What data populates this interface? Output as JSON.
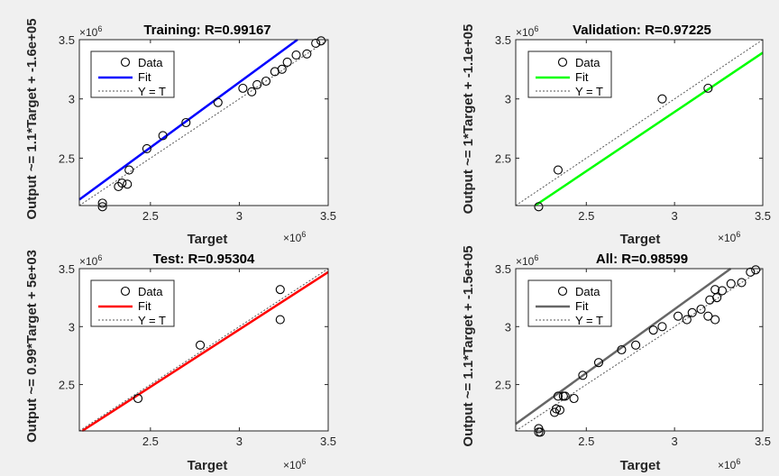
{
  "colors": {
    "figure_background": "#f0f0f0",
    "axes_background": "#ffffff",
    "training_fit": "#0000ff",
    "validation_fit": "#00ff00",
    "test_fit": "#ff0000",
    "all_fit": "#666666",
    "marker": "#000000",
    "identity_line": "#555555"
  },
  "chart_data": [
    {
      "type": "scatter",
      "title": "Training: R=0.99167",
      "xlabel": "Target",
      "ylabel": "Output ~= 1.1*Target + -1.6e+05",
      "x_exponent": "×10",
      "x_exponent_power": "6",
      "y_exponent": "×10",
      "y_exponent_power": "6",
      "xlim": [
        2.1,
        3.5
      ],
      "ylim": [
        2.1,
        3.5
      ],
      "xticks": [
        2.5,
        3,
        3.5
      ],
      "yticks": [
        2.5,
        3,
        3.5
      ],
      "xtick_labels": [
        "2.5",
        "3",
        "3.5"
      ],
      "ytick_labels": [
        "2.5",
        "3",
        "3.5"
      ],
      "fit": {
        "slope": 1.1,
        "intercept": -0.16
      },
      "fit_color": "#0000ff",
      "legend": {
        "data": "Data",
        "fit": "Fit",
        "identity": "Y = T",
        "position": "top-left"
      },
      "x": [
        2.23,
        2.23,
        2.32,
        2.34,
        2.37,
        2.38,
        2.48,
        2.57,
        2.7,
        2.88,
        3.02,
        3.07,
        3.1,
        3.15,
        3.2,
        3.24,
        3.27,
        3.32,
        3.38,
        3.43,
        3.46
      ],
      "y": [
        2.12,
        2.09,
        2.26,
        2.29,
        2.28,
        2.4,
        2.58,
        2.69,
        2.8,
        2.97,
        3.09,
        3.06,
        3.12,
        3.15,
        3.23,
        3.25,
        3.31,
        3.37,
        3.38,
        3.47,
        3.49
      ]
    },
    {
      "type": "scatter",
      "title": "Validation: R=0.97225",
      "xlabel": "Target",
      "ylabel": "Output ~= 1*Target + -1.1e+05",
      "x_exponent": "×10",
      "x_exponent_power": "6",
      "y_exponent": "×10",
      "y_exponent_power": "6",
      "xlim": [
        2.1,
        3.5
      ],
      "ylim": [
        2.1,
        3.5
      ],
      "xticks": [
        2.5,
        3,
        3.5
      ],
      "yticks": [
        2.5,
        3,
        3.5
      ],
      "xtick_labels": [
        "2.5",
        "3",
        "3.5"
      ],
      "ytick_labels": [
        "2.5",
        "3",
        "3.5"
      ],
      "fit": {
        "slope": 1.0,
        "intercept": -0.11
      },
      "fit_color": "#00ff00",
      "legend": {
        "data": "Data",
        "fit": "Fit",
        "identity": "Y = T",
        "position": "top-left"
      },
      "x": [
        2.23,
        2.34,
        2.93,
        3.19
      ],
      "y": [
        2.09,
        2.4,
        3.0,
        3.09
      ]
    },
    {
      "type": "scatter",
      "title": "Test: R=0.95304",
      "xlabel": "Target",
      "ylabel": "Output ~= 0.99*Target + 5e+03",
      "x_exponent": "×10",
      "x_exponent_power": "6",
      "y_exponent": "×10",
      "y_exponent_power": "6",
      "xlim": [
        2.1,
        3.5
      ],
      "ylim": [
        2.1,
        3.5
      ],
      "xticks": [
        2.5,
        3,
        3.5
      ],
      "yticks": [
        2.5,
        3,
        3.5
      ],
      "xtick_labels": [
        "2.5",
        "3",
        "3.5"
      ],
      "ytick_labels": [
        "2.5",
        "3",
        "3.5"
      ],
      "fit": {
        "slope": 0.99,
        "intercept": 0.005
      },
      "fit_color": "#ff0000",
      "legend": {
        "data": "Data",
        "fit": "Fit",
        "identity": "Y = T",
        "position": "top-left"
      },
      "x": [
        2.43,
        2.78,
        3.23,
        3.23
      ],
      "y": [
        2.38,
        2.84,
        3.32,
        3.06
      ]
    },
    {
      "type": "scatter",
      "title": "All: R=0.98599",
      "xlabel": "Target",
      "ylabel": "Output ~= 1.1*Target + -1.5e+05",
      "x_exponent": "×10",
      "x_exponent_power": "6",
      "y_exponent": "×10",
      "y_exponent_power": "6",
      "xlim": [
        2.1,
        3.5
      ],
      "ylim": [
        2.1,
        3.5
      ],
      "xticks": [
        2.5,
        3,
        3.5
      ],
      "yticks": [
        2.5,
        3,
        3.5
      ],
      "xtick_labels": [
        "2.5",
        "3",
        "3.5"
      ],
      "ytick_labels": [
        "2.5",
        "3",
        "3.5"
      ],
      "fit": {
        "slope": 1.1,
        "intercept": -0.15
      },
      "fit_color": "#666666",
      "legend": {
        "data": "Data",
        "fit": "Fit",
        "identity": "Y = T",
        "position": "top-left"
      },
      "x": [
        2.23,
        2.23,
        2.24,
        2.32,
        2.33,
        2.34,
        2.35,
        2.37,
        2.38,
        2.43,
        2.48,
        2.57,
        2.7,
        2.78,
        2.88,
        2.93,
        3.02,
        3.07,
        3.1,
        3.15,
        3.19,
        3.2,
        3.23,
        3.23,
        3.24,
        3.27,
        3.32,
        3.38,
        3.43,
        3.46
      ],
      "y": [
        2.12,
        2.09,
        2.09,
        2.26,
        2.29,
        2.4,
        2.28,
        2.4,
        2.4,
        2.38,
        2.58,
        2.69,
        2.8,
        2.84,
        2.97,
        3.0,
        3.09,
        3.06,
        3.12,
        3.15,
        3.09,
        3.23,
        3.32,
        3.06,
        3.25,
        3.31,
        3.37,
        3.38,
        3.47,
        3.49
      ]
    }
  ]
}
